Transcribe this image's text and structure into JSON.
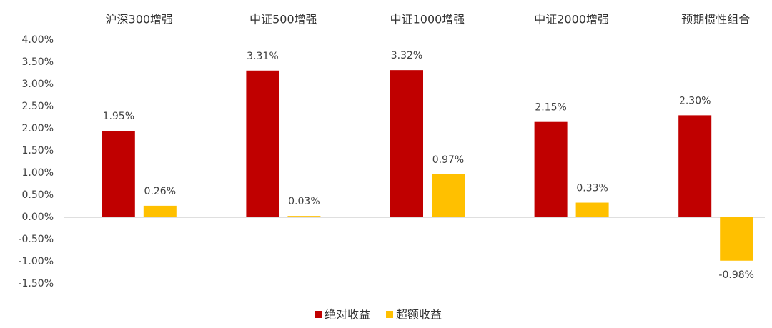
{
  "chart_data": {
    "type": "bar",
    "categories": [
      "沪深300增强",
      "中证500增强",
      "中证1000增强",
      "中证2000增强",
      "预期惯性组合"
    ],
    "series": [
      {
        "name": "绝对收益",
        "color": "#c00000",
        "values": [
          1.95,
          3.31,
          3.32,
          2.15,
          2.3
        ],
        "value_labels": [
          "1.95%",
          "3.31%",
          "3.32%",
          "2.15%",
          "2.30%"
        ]
      },
      {
        "name": "超额收益",
        "color": "#ffc000",
        "values": [
          0.26,
          0.03,
          0.97,
          0.33,
          -0.98
        ],
        "value_labels": [
          "0.26%",
          "0.03%",
          "0.97%",
          "0.33%",
          "-0.98%"
        ]
      }
    ],
    "ylim": [
      -1.5,
      4.0
    ],
    "yticks": [
      {
        "value": 4.0,
        "label": "4.00%"
      },
      {
        "value": 3.5,
        "label": "3.50%"
      },
      {
        "value": 3.0,
        "label": "3.00%"
      },
      {
        "value": 2.5,
        "label": "2.50%"
      },
      {
        "value": 2.0,
        "label": "2.00%"
      },
      {
        "value": 1.5,
        "label": "1.50%"
      },
      {
        "value": 1.0,
        "label": "1.00%"
      },
      {
        "value": 0.5,
        "label": "0.50%"
      },
      {
        "value": 0.0,
        "label": "0.00%"
      },
      {
        "value": -0.5,
        "label": "-0.50%"
      },
      {
        "value": -1.0,
        "label": "-1.00%"
      },
      {
        "value": -1.5,
        "label": "-1.50%"
      }
    ],
    "grid": false,
    "legend": "bottom"
  }
}
